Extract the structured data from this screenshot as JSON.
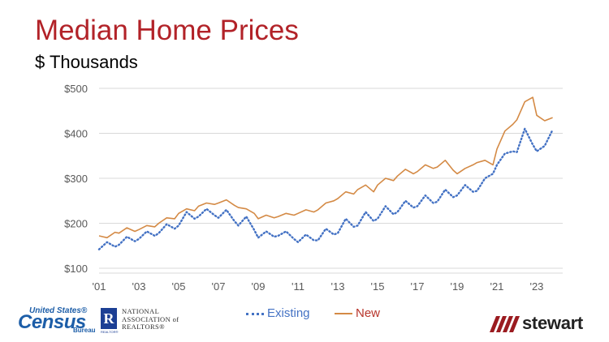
{
  "title": "Median Home Prices",
  "subtitle": "$ Thousands",
  "colors": {
    "title": "#b22228",
    "existing": "#4472c4",
    "new": "#d48a45",
    "new_legend_text": "#b8352b",
    "grid": "#d9d9d9",
    "axis_text": "#595959"
  },
  "logos": {
    "census": {
      "top": "United States®",
      "main": "Census",
      "bottom": "Bureau"
    },
    "nar": {
      "mark": "R",
      "lines": [
        "NATIONAL",
        "ASSOCIATION of",
        "REALTORS®"
      ],
      "small": "REALTOR®"
    },
    "stewart": {
      "name": "stewart"
    }
  },
  "chart_data": {
    "type": "line",
    "x_unit": "year",
    "x_ticks": [
      2001,
      2003,
      2005,
      2007,
      2009,
      2011,
      2013,
      2015,
      2017,
      2019,
      2021,
      2023
    ],
    "x_tick_labels": [
      "'01",
      "'03",
      "'05",
      "'07",
      "'09",
      "'11",
      "'13",
      "'15",
      "'17",
      "'19",
      "'21",
      "'23"
    ],
    "xlim": [
      2001,
      2023.9
    ],
    "y_ticks": [
      100,
      200,
      300,
      400,
      500
    ],
    "y_tick_labels": [
      "$100",
      "$200",
      "$300",
      "$400",
      "$500"
    ],
    "ylim": [
      100,
      500
    ],
    "grid": "horizontal",
    "legend_position": "bottom",
    "series": [
      {
        "name": "Existing",
        "style": "dotted",
        "x": [
          2001.0,
          2001.4,
          2001.8,
          2002.0,
          2002.4,
          2002.8,
          2003.0,
          2003.4,
          2003.8,
          2004.0,
          2004.4,
          2004.8,
          2005.0,
          2005.4,
          2005.8,
          2006.0,
          2006.4,
          2006.8,
          2007.0,
          2007.4,
          2007.8,
          2008.0,
          2008.4,
          2008.8,
          2009.0,
          2009.4,
          2009.8,
          2010.0,
          2010.4,
          2010.8,
          2011.0,
          2011.4,
          2011.8,
          2012.0,
          2012.4,
          2012.8,
          2013.0,
          2013.4,
          2013.8,
          2014.0,
          2014.4,
          2014.8,
          2015.0,
          2015.4,
          2015.8,
          2016.0,
          2016.4,
          2016.8,
          2017.0,
          2017.4,
          2017.8,
          2018.0,
          2018.4,
          2018.8,
          2019.0,
          2019.4,
          2019.8,
          2020.0,
          2020.4,
          2020.8,
          2021.0,
          2021.4,
          2021.8,
          2022.0,
          2022.4,
          2022.8,
          2023.0,
          2023.4,
          2023.8
        ],
        "y": [
          142,
          158,
          148,
          152,
          170,
          160,
          165,
          182,
          172,
          178,
          198,
          188,
          195,
          225,
          210,
          215,
          232,
          218,
          212,
          230,
          205,
          195,
          215,
          185,
          168,
          182,
          170,
          172,
          182,
          165,
          158,
          175,
          162,
          162,
          188,
          175,
          178,
          210,
          192,
          195,
          225,
          205,
          210,
          238,
          220,
          225,
          250,
          235,
          238,
          262,
          245,
          248,
          275,
          258,
          262,
          285,
          270,
          272,
          300,
          310,
          330,
          355,
          360,
          358,
          410,
          375,
          360,
          372,
          408
        ]
      },
      {
        "name": "New",
        "style": "solid",
        "x": [
          2001.0,
          2001.4,
          2001.8,
          2002.0,
          2002.4,
          2002.8,
          2003.0,
          2003.4,
          2003.8,
          2004.0,
          2004.4,
          2004.8,
          2005.0,
          2005.4,
          2005.8,
          2006.0,
          2006.4,
          2006.8,
          2007.0,
          2007.4,
          2007.8,
          2008.0,
          2008.4,
          2008.8,
          2009.0,
          2009.4,
          2009.8,
          2010.0,
          2010.4,
          2010.8,
          2011.0,
          2011.4,
          2011.8,
          2012.0,
          2012.4,
          2012.8,
          2013.0,
          2013.4,
          2013.8,
          2014.0,
          2014.4,
          2014.8,
          2015.0,
          2015.4,
          2015.8,
          2016.0,
          2016.4,
          2016.8,
          2017.0,
          2017.4,
          2017.8,
          2018.0,
          2018.4,
          2018.8,
          2019.0,
          2019.4,
          2019.8,
          2020.0,
          2020.4,
          2020.8,
          2021.0,
          2021.4,
          2021.8,
          2022.0,
          2022.4,
          2022.8,
          2023.0,
          2023.4,
          2023.8
        ],
        "y": [
          172,
          168,
          180,
          178,
          190,
          182,
          186,
          195,
          192,
          200,
          212,
          210,
          222,
          232,
          228,
          238,
          245,
          242,
          245,
          252,
          240,
          235,
          232,
          222,
          210,
          218,
          212,
          215,
          222,
          218,
          222,
          230,
          225,
          230,
          245,
          250,
          255,
          270,
          265,
          275,
          285,
          270,
          285,
          300,
          295,
          305,
          320,
          310,
          315,
          330,
          322,
          325,
          340,
          318,
          310,
          322,
          330,
          335,
          340,
          330,
          365,
          405,
          420,
          430,
          470,
          480,
          440,
          428,
          435
        ]
      }
    ]
  }
}
